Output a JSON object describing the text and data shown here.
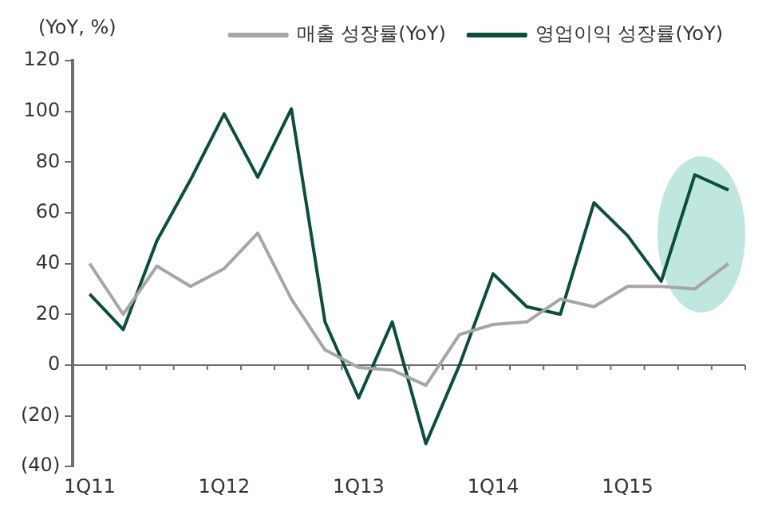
{
  "chart_data": {
    "type": "line",
    "ylabel": "(YoY, %)",
    "categories": [
      "1Q11",
      null,
      null,
      null,
      "1Q12",
      null,
      null,
      null,
      "1Q13",
      null,
      null,
      null,
      "1Q14",
      null,
      null,
      null,
      "1Q15",
      null,
      null,
      null
    ],
    "series": [
      {
        "name": "매출 성장률(YoY)",
        "color": "#a6a6a6",
        "values": [
          40,
          20,
          39,
          31,
          38,
          52,
          26,
          6,
          -1,
          -2,
          -8,
          12,
          16,
          17,
          26,
          23,
          31,
          31,
          30,
          40
        ]
      },
      {
        "name": "영업이익 성장률(YoY)",
        "color": "#0d4d3c",
        "values": [
          28,
          14,
          49,
          73,
          99,
          74,
          101,
          17,
          -13,
          17,
          -31,
          0,
          36,
          23,
          20,
          64,
          51,
          33,
          75,
          69
        ]
      }
    ],
    "ylim": [
      -40,
      120
    ],
    "yticks": [
      {
        "value": -40,
        "label": "(40)"
      },
      {
        "value": -20,
        "label": "(20)"
      },
      0,
      20,
      40,
      60,
      80,
      100,
      120
    ],
    "ref_lines": [
      {
        "axis": "y",
        "value": 0,
        "color": "#6e6e6e"
      }
    ],
    "grid": false,
    "legend": "top",
    "marker": "none",
    "line_style": "solid"
  }
}
